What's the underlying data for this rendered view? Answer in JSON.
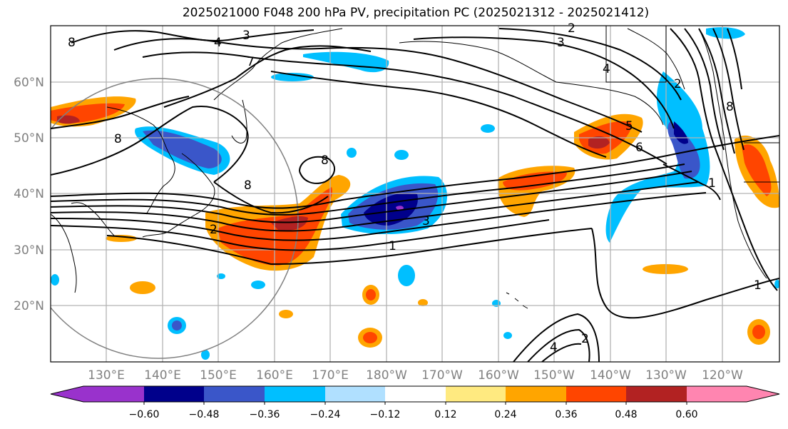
{
  "title": "2025021000 F048 200 hPa PV, precipitation PC (2025021312 - 2025021412)",
  "latitude_labels": [
    "60°N",
    "50°N",
    "40°N",
    "30°N",
    "20°N"
  ],
  "longitude_labels": [
    "130°E",
    "140°E",
    "150°E",
    "160°E",
    "170°E",
    "180°W",
    "170°W",
    "160°W",
    "150°W",
    "140°W",
    "130°W",
    "120°W"
  ],
  "colorbar": {
    "ticks": [
      "−0.60",
      "−0.48",
      "−0.36",
      "−0.24",
      "−0.12",
      "0.12",
      "0.24",
      "0.36",
      "0.48",
      "0.60"
    ],
    "colors": [
      "#9932cc",
      "#00008b",
      "#3a56c9",
      "#00bfff",
      "#b0e0ff",
      "#ffffff",
      "#ffea80",
      "#ffa500",
      "#ff4500",
      "#b22222",
      "#ff85b0"
    ]
  },
  "contour_labels": [
    "8",
    "3",
    "4",
    "7",
    "2",
    "3",
    "4",
    "2",
    "8",
    "8",
    "8",
    "5",
    "6",
    "8",
    "3",
    "1",
    "1",
    "2",
    "4",
    "2",
    "1"
  ],
  "colors": {
    "land_border": "#000000",
    "grid": "#b3b3b3",
    "circle": "#808080",
    "pv_contour": "#000000"
  }
}
